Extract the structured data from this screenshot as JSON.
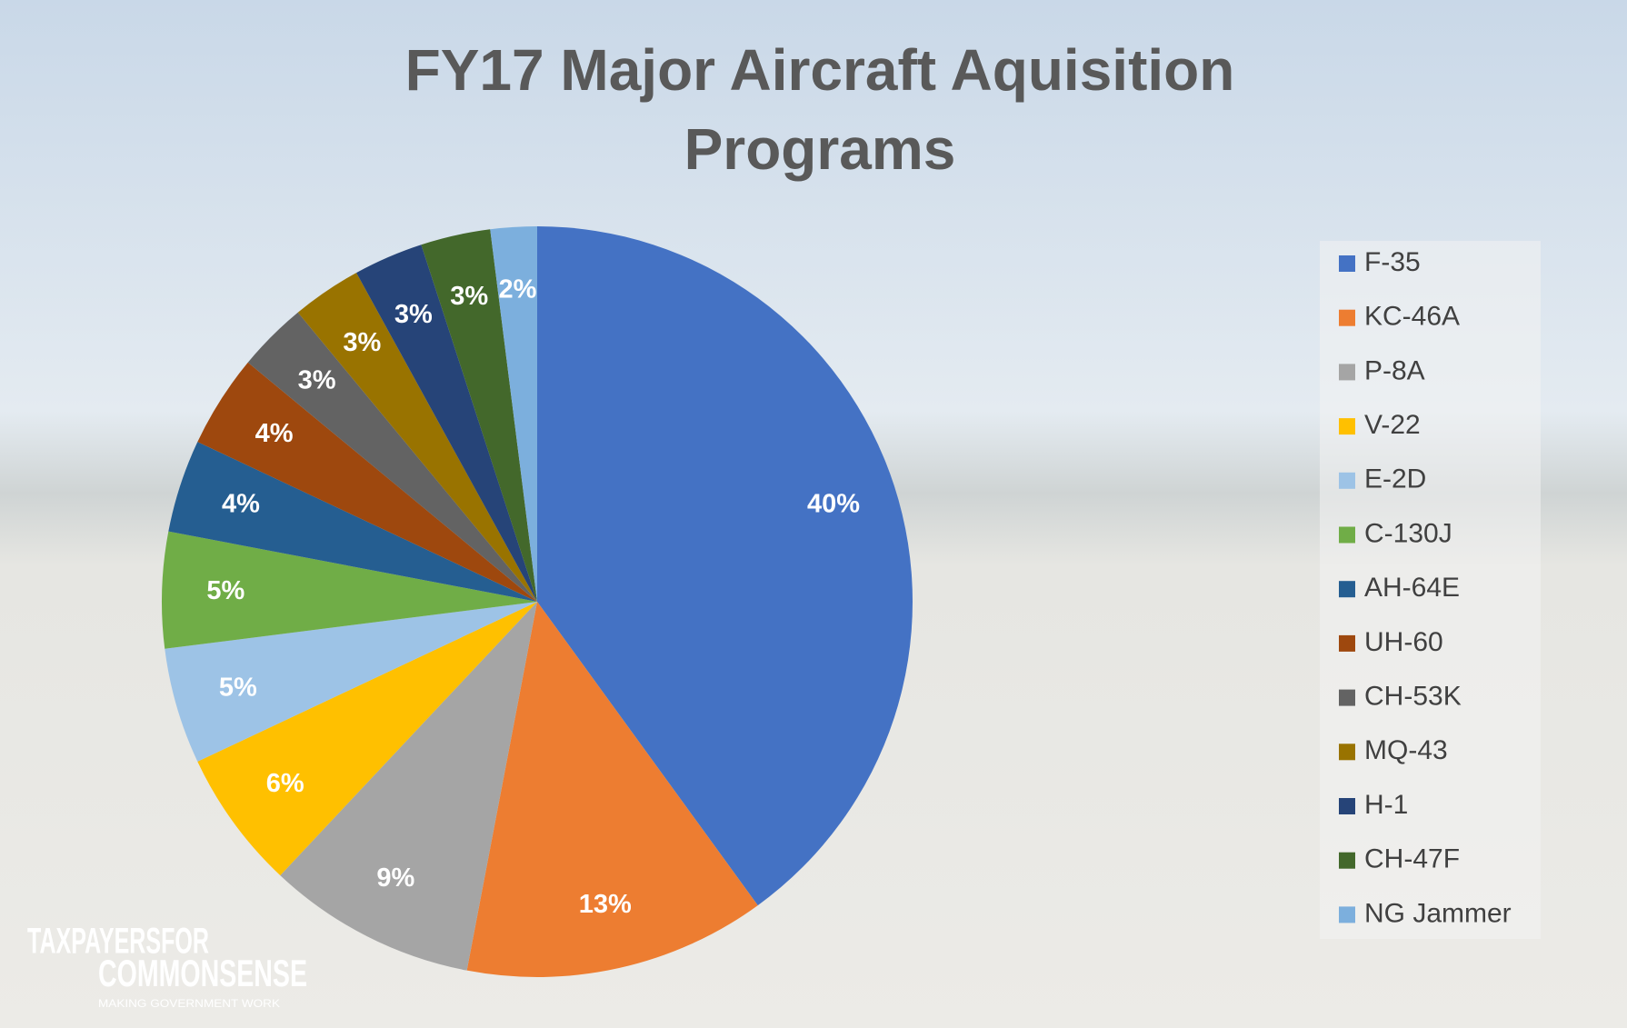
{
  "chart_data": {
    "type": "pie",
    "title": "FY17 Major Aircraft Aquisition Programs",
    "categories": [
      "F-35",
      "KC-46A",
      "P-8A",
      "V-22",
      "E-2D",
      "C-130J",
      "AH-64E",
      "UH-60",
      "CH-53K",
      "MQ-43",
      "H-1",
      "CH-47F",
      "NG Jammer"
    ],
    "values": [
      40,
      13,
      9,
      6,
      5,
      5,
      4,
      4,
      3,
      3,
      3,
      3,
      2
    ],
    "value_labels": [
      "40%",
      "13%",
      "9%",
      "6%",
      "5%",
      "5%",
      "4%",
      "4%",
      "3%",
      "3%",
      "3%",
      "3%",
      "2%"
    ],
    "colors": [
      "#4472c4",
      "#ed7d31",
      "#a5a5a5",
      "#ffc000",
      "#9dc3e6",
      "#70ad47",
      "#255e91",
      "#9e480e",
      "#636363",
      "#997300",
      "#264478",
      "#43682b",
      "#7cafdd"
    ],
    "legend": "right"
  },
  "logo": {
    "line1": "TAXPAYERSFOR",
    "line2": "COMMONSENSE",
    "tagline": "MAKING GOVERNMENT WORK"
  }
}
